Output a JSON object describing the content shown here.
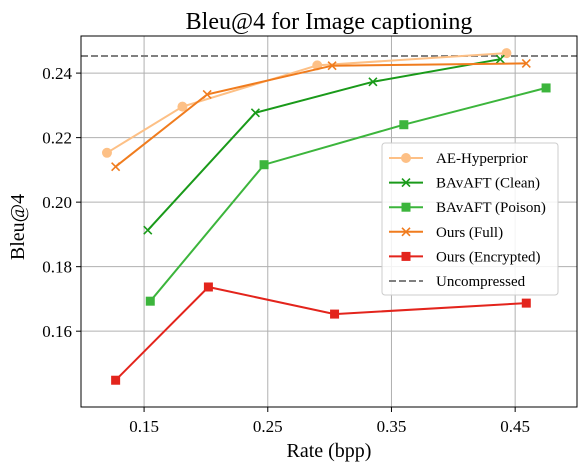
{
  "chart_data": {
    "type": "line",
    "title": "Bleu@4 for Image captioning",
    "xlabel": "Rate (bpp)",
    "ylabel": "Bleu@4",
    "xlim": [
      0.099,
      0.5
    ],
    "ylim": [
      0.1365,
      0.2515
    ],
    "xticks": [
      0.15,
      0.25,
      0.35,
      0.45
    ],
    "xtick_labels": [
      "0.15",
      "0.25",
      "0.35",
      "0.45"
    ],
    "yticks": [
      0.16,
      0.18,
      0.2,
      0.22,
      0.24
    ],
    "ytick_labels": [
      "0.16",
      "0.18",
      "0.20",
      "0.22",
      "0.24"
    ],
    "grid": true,
    "legend_position": "right",
    "series": [
      {
        "name": "AE-Hyperprior",
        "color": "#fdc086",
        "marker": "circle",
        "x": [
          0.12,
          0.181,
          0.29,
          0.443
        ],
        "y": [
          0.2153,
          0.2296,
          0.2424,
          0.2462
        ]
      },
      {
        "name": "BAvAFT (Clean)",
        "color": "#1a9a1a",
        "marker": "x",
        "x": [
          0.153,
          0.24,
          0.335,
          0.438
        ],
        "y": [
          0.1913,
          0.2277,
          0.2373,
          0.2443
        ]
      },
      {
        "name": "BAvAFT (Poison)",
        "color": "#3cb53c",
        "marker": "square",
        "x": [
          0.155,
          0.247,
          0.36,
          0.475
        ],
        "y": [
          0.1693,
          0.2116,
          0.224,
          0.2354
        ]
      },
      {
        "name": "Ours (Full)",
        "color": "#f07c1e",
        "marker": "x",
        "x": [
          0.127,
          0.201,
          0.302,
          0.459
        ],
        "y": [
          0.211,
          0.2334,
          0.2423,
          0.243
        ]
      },
      {
        "name": "Ours (Encrypted)",
        "color": "#e3241c",
        "marker": "square",
        "x": [
          0.127,
          0.202,
          0.304,
          0.459
        ],
        "y": [
          0.1448,
          0.1737,
          0.1653,
          0.1687
        ]
      }
    ],
    "reference_line": {
      "name": "Uncompressed",
      "y": 0.2453,
      "color": "#808080",
      "style": "dashed"
    }
  }
}
